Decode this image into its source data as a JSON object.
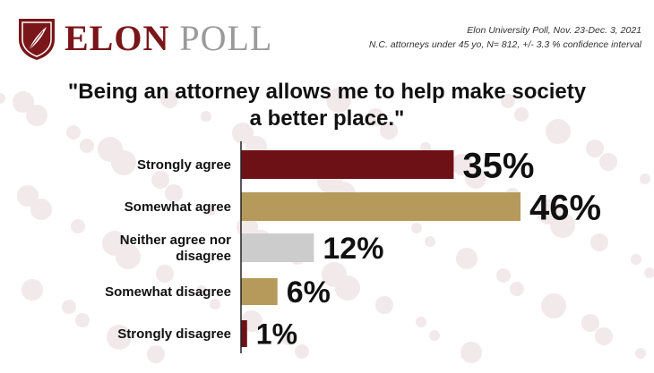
{
  "header": {
    "brand_primary": "ELON",
    "brand_secondary": "POLL",
    "meta_line1": "Elon University Poll, Nov. 23-Dec. 3, 2021",
    "meta_line2": "N.C. attorneys under 45 yo, N= 812, +/- 3.3 % confidence interval"
  },
  "colors": {
    "maroon": "#6e1116",
    "gold": "#b59a5b",
    "gray": "#cccccc"
  },
  "chart_data": {
    "type": "bar",
    "orientation": "horizontal",
    "title_lines": [
      "\"Being an attorney allows me to help make society",
      "a better place.\""
    ],
    "categories": [
      "Strongly agree",
      "Somewhat agree",
      "Neither agree nor disagree",
      "Somewhat disagree",
      "Strongly disagree"
    ],
    "values": [
      35,
      46,
      12,
      6,
      1
    ],
    "labels": [
      "35%",
      "46%",
      "12%",
      "6%",
      "1%"
    ],
    "bar_colors": [
      "#6e1116",
      "#b59a5b",
      "#cccccc",
      "#b59a5b",
      "#6e1116"
    ],
    "grid": false,
    "legend": "none"
  }
}
